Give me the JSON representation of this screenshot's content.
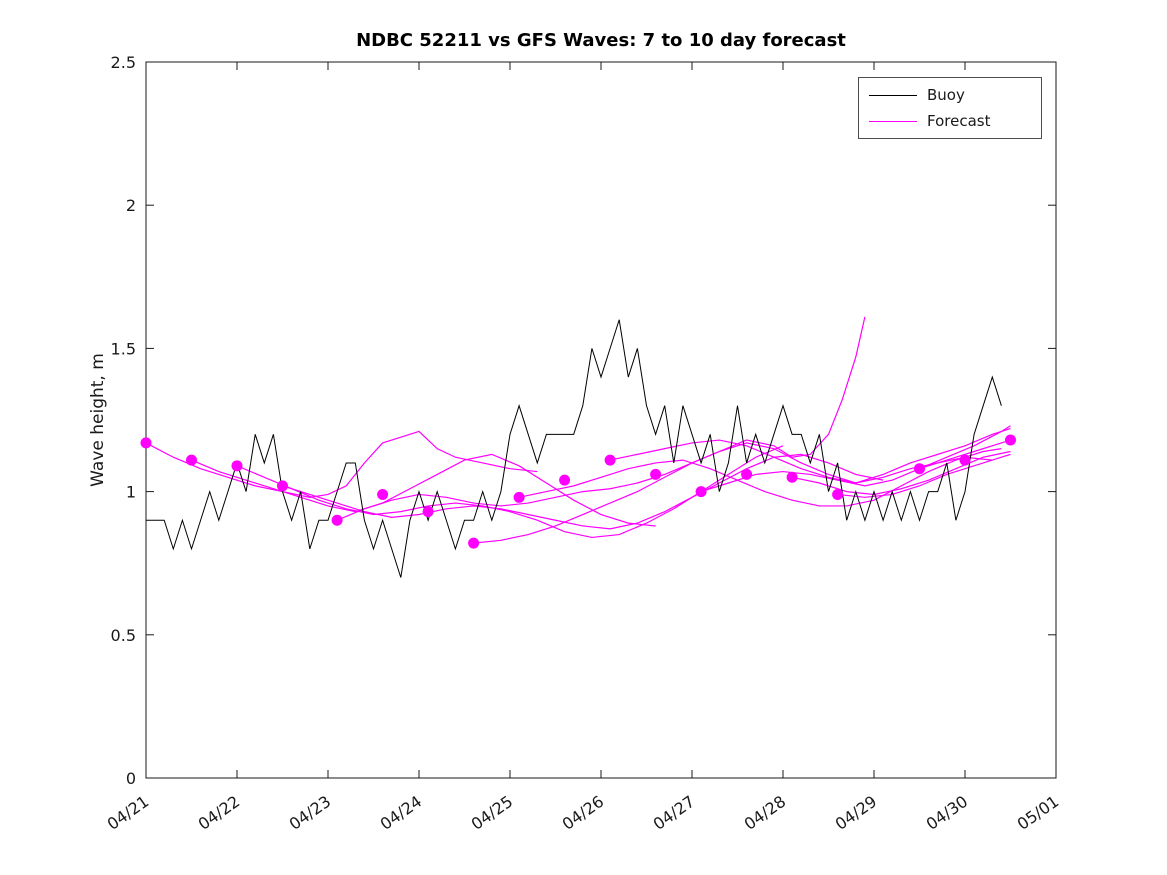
{
  "chart_data": {
    "type": "line",
    "title": "NDBC 52211 vs GFS Waves: 7 to 10 day forecast",
    "xlabel": "",
    "ylabel": "Wave height, m",
    "xlim": [
      0,
      10
    ],
    "ylim": [
      0,
      2.5
    ],
    "grid": false,
    "legend_position": "top-right",
    "x_tick_positions": [
      0,
      1,
      2,
      3,
      4,
      5,
      6,
      7,
      8,
      9,
      10
    ],
    "x_tick_labels": [
      "04/21",
      "04/22",
      "04/23",
      "04/24",
      "04/25",
      "04/26",
      "04/27",
      "04/28",
      "04/29",
      "04/30",
      "05/01"
    ],
    "y_ticks": [
      0,
      0.5,
      1,
      1.5,
      2,
      2.5
    ],
    "y_tick_labels": [
      "0",
      "0.5",
      "1",
      "1.5",
      "2",
      "2.5"
    ],
    "legend": [
      {
        "label": "Buoy",
        "color": "#000000"
      },
      {
        "label": "Forecast",
        "color": "#ff00ff"
      }
    ],
    "buoy": {
      "name": "Buoy",
      "color": "#000000",
      "x_start": 0,
      "x_step": 0.1,
      "values": [
        0.9,
        0.9,
        0.9,
        0.8,
        0.9,
        0.8,
        0.9,
        1.0,
        0.9,
        1.0,
        1.1,
        1.0,
        1.2,
        1.1,
        1.2,
        1.0,
        0.9,
        1.0,
        0.8,
        0.9,
        0.9,
        1.0,
        1.1,
        1.1,
        0.9,
        0.8,
        0.9,
        0.8,
        0.7,
        0.9,
        1.0,
        0.9,
        1.0,
        0.9,
        0.8,
        0.9,
        0.9,
        1.0,
        0.9,
        1.0,
        1.2,
        1.3,
        1.2,
        1.1,
        1.2,
        1.2,
        1.2,
        1.2,
        1.3,
        1.5,
        1.4,
        1.5,
        1.6,
        1.4,
        1.5,
        1.3,
        1.2,
        1.3,
        1.1,
        1.3,
        1.2,
        1.1,
        1.2,
        1.0,
        1.1,
        1.3,
        1.1,
        1.2,
        1.1,
        1.2,
        1.3,
        1.2,
        1.2,
        1.1,
        1.2,
        1.0,
        1.1,
        0.9,
        1.0,
        0.9,
        1.0,
        0.9,
        1.0,
        0.9,
        1.0,
        0.9,
        1.0,
        1.0,
        1.1,
        0.9,
        1.0,
        1.2,
        1.3,
        1.4,
        1.3
      ]
    },
    "forecast": {
      "name": "Forecast",
      "color": "#ff00ff",
      "runs": [
        [
          [
            0,
            1.17
          ],
          [
            0.3,
            1.12
          ],
          [
            0.6,
            1.08
          ],
          [
            0.9,
            1.05
          ],
          [
            1.2,
            1.02
          ],
          [
            1.5,
            1.0
          ],
          [
            1.8,
            0.98
          ],
          [
            2.0,
            0.99
          ],
          [
            2.2,
            1.02
          ],
          [
            2.4,
            1.1
          ],
          [
            2.6,
            1.17
          ],
          [
            2.8,
            1.19
          ],
          [
            3.0,
            1.21
          ],
          [
            3.2,
            1.15
          ],
          [
            3.4,
            1.12
          ],
          [
            3.7,
            1.1
          ],
          [
            4.0,
            1.08
          ],
          [
            4.3,
            1.07
          ]
        ],
        [
          [
            0.5,
            1.11
          ],
          [
            0.8,
            1.07
          ],
          [
            1.1,
            1.04
          ],
          [
            1.4,
            1.01
          ],
          [
            1.7,
            0.98
          ],
          [
            2.0,
            0.95
          ],
          [
            2.3,
            0.93
          ],
          [
            2.6,
            0.96
          ],
          [
            2.9,
            1.01
          ],
          [
            3.2,
            1.06
          ],
          [
            3.5,
            1.11
          ],
          [
            3.8,
            1.13
          ],
          [
            4.1,
            1.09
          ],
          [
            4.4,
            1.03
          ],
          [
            4.7,
            0.97
          ],
          [
            5.0,
            0.92
          ],
          [
            5.3,
            0.89
          ],
          [
            5.6,
            0.88
          ]
        ],
        [
          [
            1.0,
            1.09
          ],
          [
            1.3,
            1.05
          ],
          [
            1.6,
            1.01
          ],
          [
            1.9,
            0.97
          ],
          [
            2.2,
            0.94
          ],
          [
            2.5,
            0.92
          ],
          [
            2.8,
            0.93
          ],
          [
            3.1,
            0.95
          ],
          [
            3.4,
            0.96
          ],
          [
            3.7,
            0.95
          ],
          [
            4.0,
            0.93
          ],
          [
            4.3,
            0.9
          ],
          [
            4.6,
            0.86
          ],
          [
            4.9,
            0.84
          ],
          [
            5.2,
            0.85
          ],
          [
            5.5,
            0.89
          ],
          [
            5.8,
            0.94
          ],
          [
            6.1,
            1.0
          ],
          [
            6.4,
            1.06
          ],
          [
            6.7,
            1.12
          ],
          [
            7.0,
            1.16
          ]
        ],
        [
          [
            1.5,
            1.02
          ],
          [
            1.8,
            0.99
          ],
          [
            2.1,
            0.96
          ],
          [
            2.4,
            0.93
          ],
          [
            2.7,
            0.91
          ],
          [
            3.0,
            0.92
          ],
          [
            3.3,
            0.94
          ],
          [
            3.6,
            0.95
          ],
          [
            3.9,
            0.94
          ],
          [
            4.2,
            0.92
          ],
          [
            4.5,
            0.9
          ],
          [
            4.8,
            0.88
          ],
          [
            5.1,
            0.87
          ],
          [
            5.4,
            0.89
          ],
          [
            5.7,
            0.93
          ],
          [
            6.0,
            0.98
          ],
          [
            6.3,
            1.03
          ],
          [
            6.6,
            1.08
          ],
          [
            6.9,
            1.12
          ],
          [
            7.2,
            1.13
          ],
          [
            7.5,
            1.1
          ],
          [
            7.8,
            1.06
          ],
          [
            8.1,
            1.04
          ]
        ],
        [
          [
            2.1,
            0.9
          ],
          [
            2.4,
            0.94
          ],
          [
            2.7,
            0.97
          ],
          [
            3.0,
            0.99
          ],
          [
            3.3,
            0.98
          ],
          [
            3.6,
            0.96
          ],
          [
            3.9,
            0.95
          ],
          [
            4.2,
            0.96
          ],
          [
            4.5,
            0.98
          ],
          [
            4.8,
            1.0
          ],
          [
            5.1,
            1.01
          ],
          [
            5.4,
            1.03
          ],
          [
            5.7,
            1.06
          ],
          [
            6.0,
            1.1
          ],
          [
            6.3,
            1.14
          ],
          [
            6.6,
            1.17
          ],
          [
            6.9,
            1.15
          ],
          [
            7.2,
            1.1
          ],
          [
            7.5,
            1.06
          ],
          [
            7.8,
            1.03
          ],
          [
            8.1,
            1.05
          ],
          [
            8.4,
            1.08
          ],
          [
            8.7,
            1.1
          ],
          [
            9.0,
            1.12
          ],
          [
            9.3,
            1.11
          ]
        ],
        [
          [
            3.6,
            0.82
          ],
          [
            3.9,
            0.83
          ],
          [
            4.2,
            0.85
          ],
          [
            4.5,
            0.88
          ],
          [
            4.8,
            0.92
          ],
          [
            5.1,
            0.96
          ],
          [
            5.4,
            1.0
          ],
          [
            5.7,
            1.05
          ],
          [
            6.0,
            1.1
          ],
          [
            6.3,
            1.14
          ],
          [
            6.6,
            1.18
          ],
          [
            6.9,
            1.16
          ],
          [
            7.1,
            1.12
          ],
          [
            7.3,
            1.13
          ],
          [
            7.5,
            1.2
          ],
          [
            7.65,
            1.32
          ],
          [
            7.8,
            1.47
          ],
          [
            7.9,
            1.61
          ]
        ],
        [
          [
            4.1,
            0.98
          ],
          [
            4.4,
            1.0
          ],
          [
            4.7,
            1.02
          ],
          [
            5.0,
            1.05
          ],
          [
            5.3,
            1.08
          ],
          [
            5.6,
            1.1
          ],
          [
            5.9,
            1.11
          ],
          [
            6.2,
            1.08
          ],
          [
            6.5,
            1.04
          ],
          [
            6.8,
            1.0
          ],
          [
            7.1,
            0.97
          ],
          [
            7.4,
            0.95
          ],
          [
            7.7,
            0.95
          ],
          [
            8.0,
            0.97
          ],
          [
            8.3,
            1.02
          ],
          [
            8.6,
            1.07
          ],
          [
            8.9,
            1.11
          ],
          [
            9.2,
            1.14
          ],
          [
            9.4,
            1.15
          ]
        ],
        [
          [
            5.1,
            1.11
          ],
          [
            5.4,
            1.13
          ],
          [
            5.7,
            1.15
          ],
          [
            6.0,
            1.17
          ],
          [
            6.3,
            1.18
          ],
          [
            6.6,
            1.16
          ],
          [
            6.9,
            1.12
          ],
          [
            7.2,
            1.08
          ],
          [
            7.5,
            1.05
          ],
          [
            7.8,
            1.03
          ],
          [
            8.1,
            1.06
          ],
          [
            8.4,
            1.1
          ],
          [
            8.7,
            1.13
          ],
          [
            9.0,
            1.16
          ],
          [
            9.3,
            1.2
          ],
          [
            9.5,
            1.22
          ]
        ],
        [
          [
            6.1,
            1.0
          ],
          [
            6.4,
            1.03
          ],
          [
            6.7,
            1.06
          ],
          [
            7.0,
            1.07
          ],
          [
            7.3,
            1.06
          ],
          [
            7.6,
            1.04
          ],
          [
            7.9,
            1.02
          ],
          [
            8.2,
            1.04
          ],
          [
            8.5,
            1.08
          ],
          [
            8.8,
            1.12
          ],
          [
            9.1,
            1.16
          ],
          [
            9.4,
            1.21
          ],
          [
            9.5,
            1.23
          ]
        ],
        [
          [
            7.1,
            1.05
          ],
          [
            7.4,
            1.03
          ],
          [
            7.7,
            1.0
          ],
          [
            8.0,
            0.99
          ],
          [
            8.3,
            1.01
          ],
          [
            8.6,
            1.04
          ],
          [
            8.9,
            1.08
          ],
          [
            9.2,
            1.12
          ],
          [
            9.5,
            1.14
          ]
        ],
        [
          [
            7.6,
            0.99
          ],
          [
            7.9,
            0.98
          ],
          [
            8.2,
            0.99
          ],
          [
            8.5,
            1.02
          ],
          [
            8.8,
            1.06
          ],
          [
            9.1,
            1.09
          ],
          [
            9.4,
            1.12
          ],
          [
            9.5,
            1.13
          ]
        ],
        [
          [
            8.5,
            1.08
          ],
          [
            8.8,
            1.11
          ],
          [
            9.1,
            1.14
          ],
          [
            9.4,
            1.17
          ],
          [
            9.5,
            1.18
          ]
        ]
      ],
      "markers": [
        [
          0,
          1.17
        ],
        [
          0.5,
          1.11
        ],
        [
          1.0,
          1.09
        ],
        [
          1.5,
          1.02
        ],
        [
          2.1,
          0.9
        ],
        [
          2.6,
          0.99
        ],
        [
          3.1,
          0.93
        ],
        [
          3.6,
          0.82
        ],
        [
          4.1,
          0.98
        ],
        [
          4.6,
          1.04
        ],
        [
          5.1,
          1.11
        ],
        [
          5.6,
          1.06
        ],
        [
          6.1,
          1.0
        ],
        [
          6.6,
          1.06
        ],
        [
          7.1,
          1.05
        ],
        [
          7.6,
          0.99
        ],
        [
          8.5,
          1.08
        ],
        [
          9.0,
          1.11
        ],
        [
          9.5,
          1.18
        ]
      ]
    }
  }
}
